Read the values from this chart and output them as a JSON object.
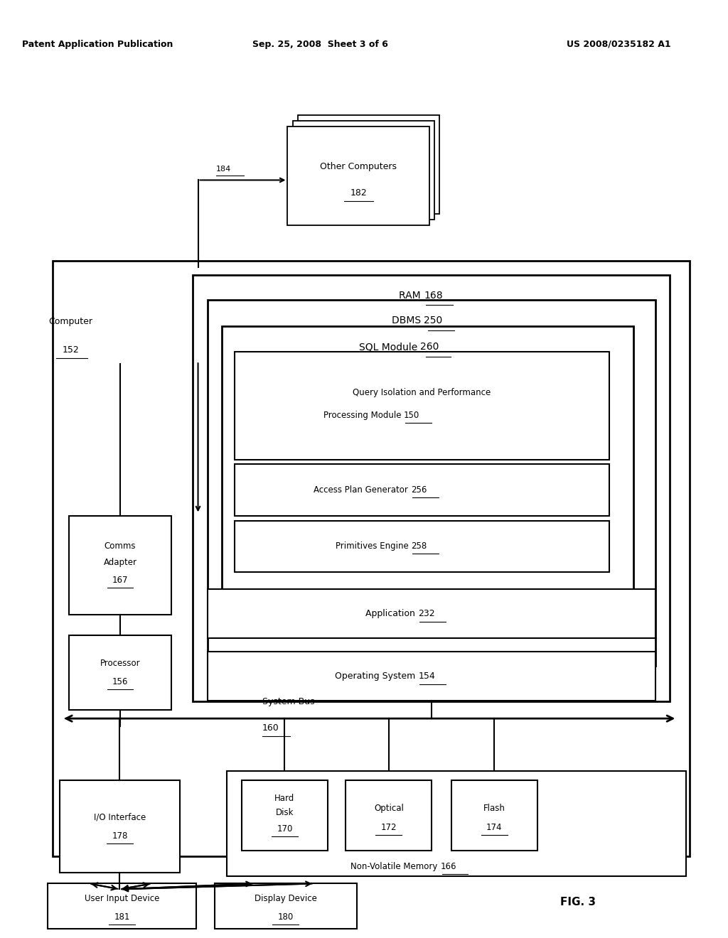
{
  "bg_color": "#ffffff",
  "header_left": "Patent Application Publication",
  "header_mid": "Sep. 25, 2008  Sheet 3 of 6",
  "header_right": "US 2008/0235182 A1",
  "fig_label": "FIG. 3"
}
